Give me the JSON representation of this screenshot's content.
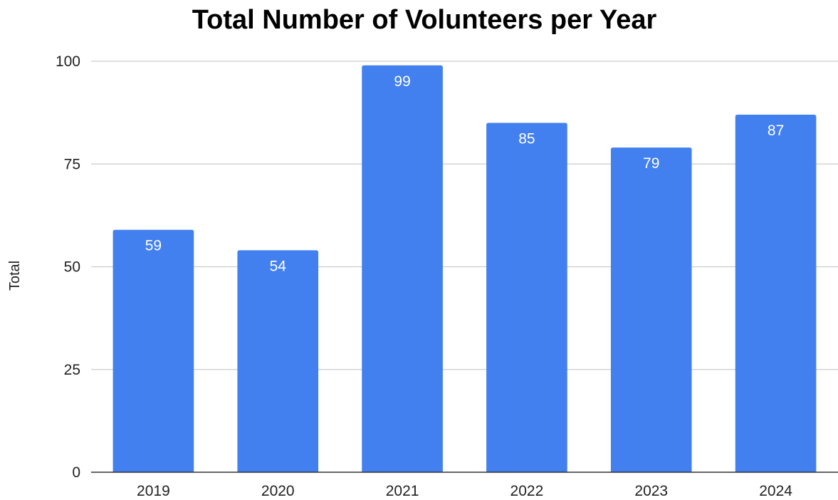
{
  "chart_data": {
    "type": "bar",
    "title": "Total Number of Volunteers per Year",
    "xlabel": "",
    "ylabel": "Total",
    "categories": [
      "2019",
      "2020",
      "2021",
      "2022",
      "2023",
      "2024"
    ],
    "values": [
      59,
      54,
      99,
      85,
      79,
      87
    ],
    "ylim": [
      0,
      100
    ],
    "yticks": [
      0,
      25,
      50,
      75,
      100
    ],
    "grid": true,
    "data_labels": true,
    "legend": "none",
    "colors": {
      "bar": "#4380ef",
      "grid": "#cccccc",
      "baseline": "#333333"
    }
  }
}
